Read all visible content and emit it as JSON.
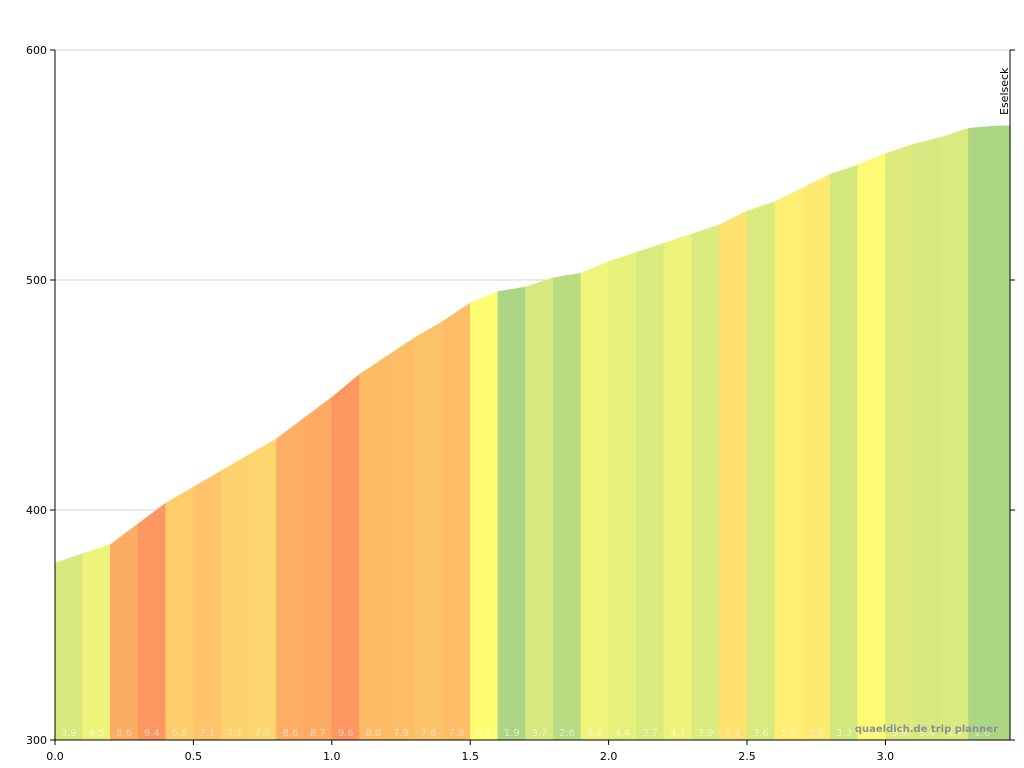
{
  "chart_data": {
    "type": "area",
    "title": "",
    "xlabel": "",
    "ylabel": "",
    "xlim": [
      0,
      3.45
    ],
    "ylim": [
      300,
      600
    ],
    "x_ticks": [
      "0.0",
      "0.5",
      "1.0",
      "1.5",
      "2.0",
      "2.5",
      "3.0"
    ],
    "y_ticks": [
      "300",
      "400",
      "500",
      "600"
    ],
    "grid": "horizontal",
    "segments": [
      {
        "x0": 0.0,
        "x1": 0.1,
        "y0": 377,
        "y1": 381,
        "grade": "3.9",
        "color": "#d9e97d"
      },
      {
        "x0": 0.1,
        "x1": 0.2,
        "y0": 381,
        "y1": 385,
        "grade": "4.5",
        "color": "#eef37a"
      },
      {
        "x0": 0.2,
        "x1": 0.3,
        "y0": 385,
        "y1": 394,
        "grade": "8.6",
        "color": "#fdac63"
      },
      {
        "x0": 0.3,
        "x1": 0.4,
        "y0": 394,
        "y1": 403,
        "grade": "9.4",
        "color": "#fd9661"
      },
      {
        "x0": 0.4,
        "x1": 0.5,
        "y0": 403,
        "y1": 410,
        "grade": "6.8",
        "color": "#fecc6b"
      },
      {
        "x0": 0.5,
        "x1": 0.6,
        "y0": 410,
        "y1": 417,
        "grade": "7.1",
        "color": "#fec36b"
      },
      {
        "x0": 0.6,
        "x1": 0.7,
        "y0": 417,
        "y1": 424,
        "grade": "7.1",
        "color": "#fed26f"
      },
      {
        "x0": 0.7,
        "x1": 0.8,
        "y0": 424,
        "y1": 431,
        "grade": "7.0",
        "color": "#fed670"
      },
      {
        "x0": 0.8,
        "x1": 0.9,
        "y0": 431,
        "y1": 440,
        "grade": "8.6",
        "color": "#fdae63"
      },
      {
        "x0": 0.9,
        "x1": 1.0,
        "y0": 440,
        "y1": 449,
        "grade": "8.7",
        "color": "#fdaa63"
      },
      {
        "x0": 1.0,
        "x1": 1.1,
        "y0": 449,
        "y1": 459,
        "grade": "9.6",
        "color": "#fd9661"
      },
      {
        "x0": 1.1,
        "x1": 1.2,
        "y0": 459,
        "y1": 467,
        "grade": "8.0",
        "color": "#fdbb66"
      },
      {
        "x0": 1.2,
        "x1": 1.3,
        "y0": 467,
        "y1": 475,
        "grade": "7.9",
        "color": "#fdbd67"
      },
      {
        "x0": 1.3,
        "x1": 1.4,
        "y0": 475,
        "y1": 482,
        "grade": "7.6",
        "color": "#fdc36a"
      },
      {
        "x0": 1.4,
        "x1": 1.5,
        "y0": 482,
        "y1": 490,
        "grade": "7.8",
        "color": "#fdbd67"
      },
      {
        "x0": 1.5,
        "x1": 1.6,
        "y0": 490,
        "y1": 495,
        "grade": "5.1",
        "color": "#fefd72"
      },
      {
        "x0": 1.6,
        "x1": 1.7,
        "y0": 495,
        "y1": 497,
        "grade": "1.9",
        "color": "#acd685"
      },
      {
        "x0": 1.7,
        "x1": 1.8,
        "y0": 497,
        "y1": 501,
        "grade": "3.7",
        "color": "#d6e980"
      },
      {
        "x0": 1.8,
        "x1": 1.9,
        "y0": 501,
        "y1": 503,
        "grade": "2.6",
        "color": "#b8dc82"
      },
      {
        "x0": 1.9,
        "x1": 2.0,
        "y0": 503,
        "y1": 508,
        "grade": "4.6",
        "color": "#eef57a"
      },
      {
        "x0": 2.0,
        "x1": 2.1,
        "y0": 508,
        "y1": 512,
        "grade": "4.4",
        "color": "#e6f17c"
      },
      {
        "x0": 2.1,
        "x1": 2.2,
        "y0": 512,
        "y1": 516,
        "grade": "3.7",
        "color": "#d9eb7e"
      },
      {
        "x0": 2.2,
        "x1": 2.3,
        "y0": 516,
        "y1": 520,
        "grade": "4.7",
        "color": "#eef37a"
      },
      {
        "x0": 2.3,
        "x1": 2.4,
        "y0": 520,
        "y1": 524,
        "grade": "3.9",
        "color": "#dbeb7d"
      },
      {
        "x0": 2.4,
        "x1": 2.5,
        "y0": 524,
        "y1": 530,
        "grade": "6.2",
        "color": "#fee16f"
      },
      {
        "x0": 2.5,
        "x1": 2.6,
        "y0": 530,
        "y1": 534,
        "grade": "3.6",
        "color": "#d9ea7e"
      },
      {
        "x0": 2.6,
        "x1": 2.7,
        "y0": 534,
        "y1": 540,
        "grade": "5.6",
        "color": "#feef72"
      },
      {
        "x0": 2.7,
        "x1": 2.8,
        "y0": 540,
        "y1": 546,
        "grade": "5.8",
        "color": "#fee971"
      },
      {
        "x0": 2.8,
        "x1": 2.9,
        "y0": 546,
        "y1": 550,
        "grade": "3.3",
        "color": "#d3e77f"
      },
      {
        "x0": 2.9,
        "x1": 3.0,
        "y0": 550,
        "y1": 555,
        "grade": "4.9",
        "color": "#fdfb73"
      },
      {
        "x0": 3.0,
        "x1": 3.1,
        "y0": 555,
        "y1": 559,
        "grade": "3.9",
        "color": "#ddeb7e"
      },
      {
        "x0": 3.1,
        "x1": 3.2,
        "y0": 559,
        "y1": 562,
        "grade": "3.4",
        "color": "#d6e880"
      },
      {
        "x0": 3.2,
        "x1": 3.3,
        "y0": 562,
        "y1": 566,
        "grade": "3.7",
        "color": "#dbea7e"
      },
      {
        "x0": 3.3,
        "x1": 3.4,
        "y0": 566,
        "y1": 567,
        "grade": "1.6",
        "color": "#acd684"
      },
      {
        "x0": 3.4,
        "x1": 3.45,
        "y0": 567,
        "y1": 567,
        "grade": "",
        "color": "#acd684"
      }
    ],
    "annotations": [
      {
        "text": "Eselseck",
        "x": 3.45
      }
    ],
    "credit": "quaeldich.de trip planner"
  }
}
